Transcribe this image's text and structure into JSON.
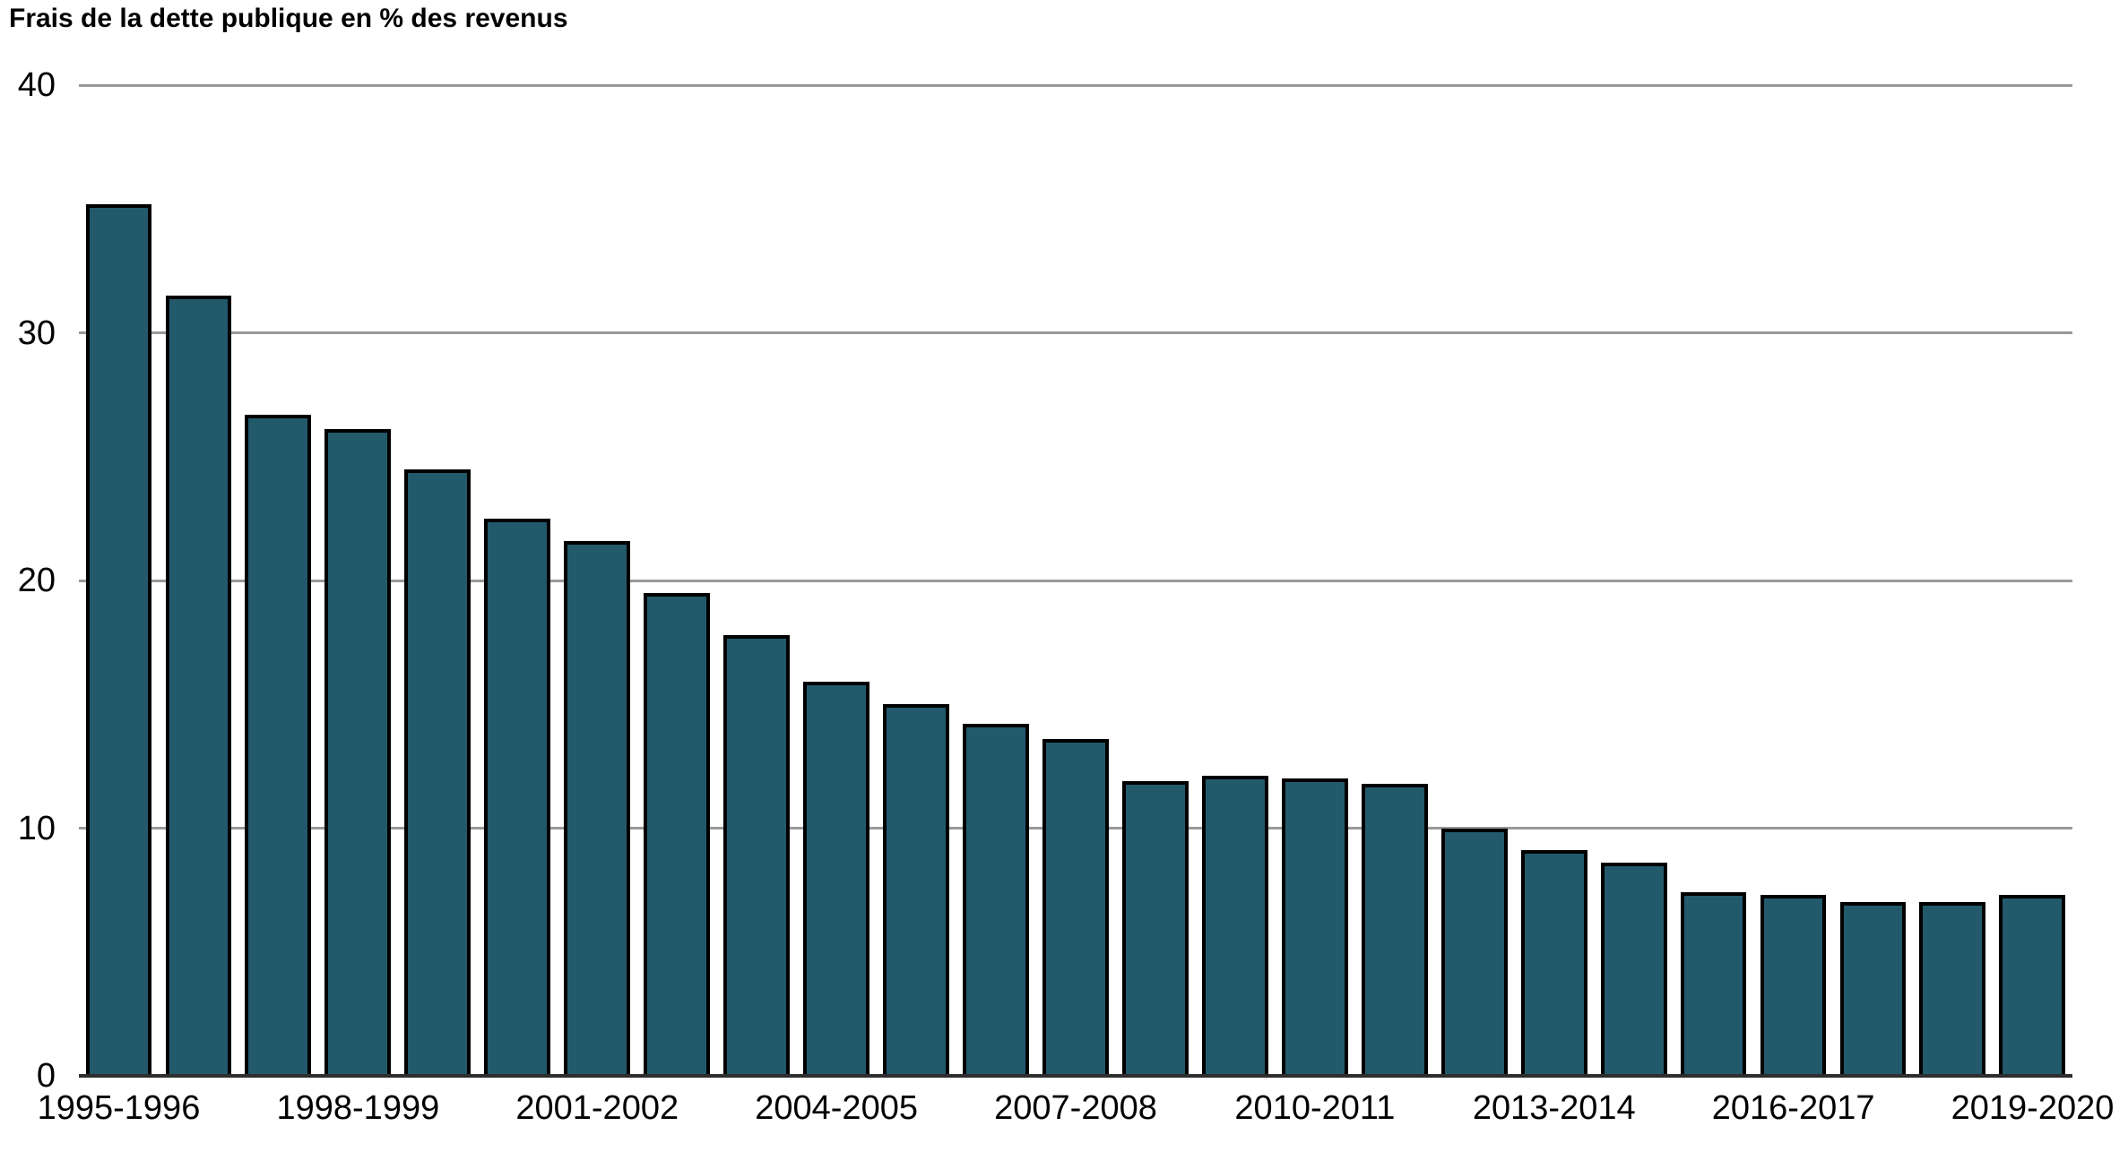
{
  "title": "Frais de la dette publique en % des revenus",
  "colors": {
    "bar_fill": "#235A6B",
    "bar_border": "#000000",
    "gridline": "#999999",
    "axis_line": "#2E2E2E",
    "text": "#000000",
    "background": "#FFFFFF"
  },
  "chart_data": {
    "type": "bar",
    "title": "Frais de la dette publique en % des revenus",
    "categories": [
      "1995-1996",
      "1996-1997",
      "1997-1998",
      "1998-1999",
      "1999-2000",
      "2000-2001",
      "2001-2002",
      "2002-2003",
      "2003-2004",
      "2004-2005",
      "2005-2006",
      "2006-2007",
      "2007-2008",
      "2008-2009",
      "2009-2010",
      "2010-2011",
      "2011-2012",
      "2012-2013",
      "2013-2014",
      "2014-2015",
      "2015-2016",
      "2016-2017",
      "2017-2018",
      "2018-2019",
      "2019-2020"
    ],
    "values": [
      35.2,
      31.5,
      26.7,
      26.1,
      24.5,
      22.5,
      21.6,
      19.5,
      17.8,
      15.9,
      15.0,
      14.2,
      13.6,
      11.9,
      12.1,
      12.0,
      11.8,
      10.0,
      9.1,
      8.6,
      7.4,
      7.3,
      7.0,
      7.0,
      7.3
    ],
    "xtick_labels": [
      "1995-1996",
      "1998-1999",
      "2001-2002",
      "2004-2005",
      "2007-2008",
      "2010-2011",
      "2013-2014",
      "2016-2017",
      "2019-2020"
    ],
    "ytick_values": [
      0,
      10,
      20,
      30,
      40
    ],
    "ylim": [
      0,
      40
    ],
    "xlabel": "",
    "ylabel": "",
    "grid": "horizontal",
    "legend": false
  }
}
